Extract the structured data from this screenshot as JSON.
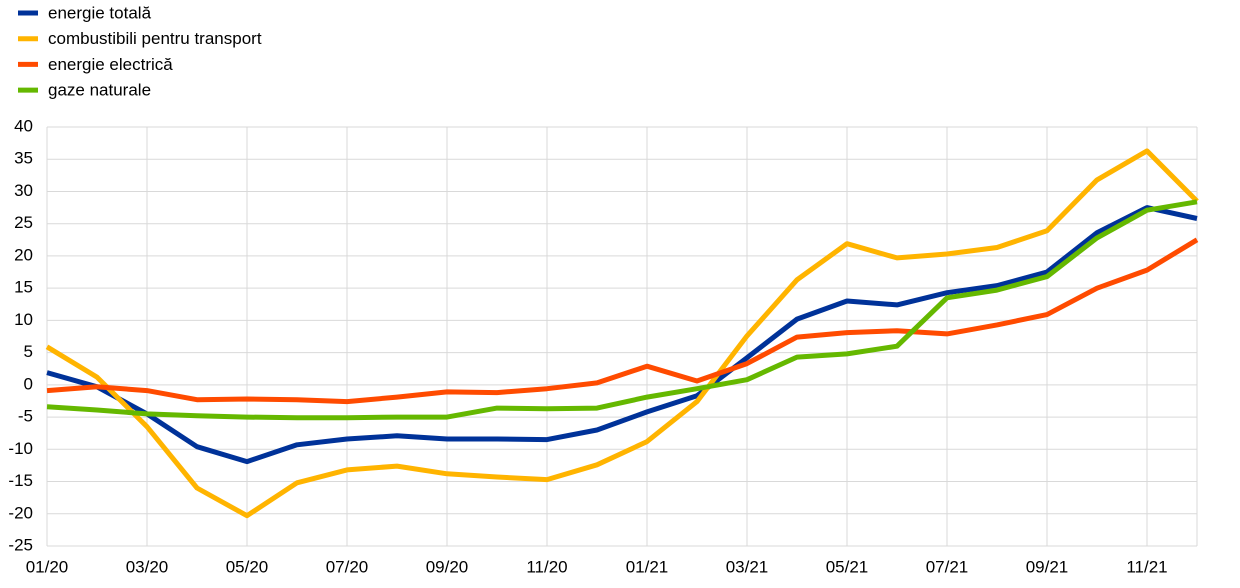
{
  "chart_data": {
    "type": "line",
    "categories": [
      "01/20",
      null,
      "03/20",
      null,
      "05/20",
      null,
      "07/20",
      null,
      "09/20",
      null,
      "11/20",
      null,
      "01/21",
      null,
      "03/21",
      null,
      "05/21",
      null,
      "07/21",
      null,
      "09/21",
      null,
      "11/21",
      null
    ],
    "series": [
      {
        "name": "energie totală",
        "color": "#003299",
        "values": [
          1.9,
          -0.3,
          -4.5,
          -9.6,
          -11.9,
          -9.3,
          -8.4,
          -7.9,
          -8.4,
          -8.4,
          -8.5,
          -7.0,
          -4.2,
          -1.7,
          4.2,
          10.2,
          13.0,
          12.4,
          14.3,
          15.4,
          17.5,
          23.6,
          27.5,
          25.8
        ]
      },
      {
        "name": "combustibili pentru transport",
        "color": "#ffb400",
        "values": [
          5.9,
          1.2,
          -6.5,
          -16.0,
          -20.3,
          -15.2,
          -13.2,
          -12.6,
          -13.8,
          -14.3,
          -14.7,
          -12.4,
          -8.8,
          -2.6,
          7.6,
          16.3,
          21.9,
          19.7,
          20.3,
          21.3,
          23.9,
          31.8,
          36.3,
          28.5
        ]
      },
      {
        "name": "energie electrică",
        "color": "#ff4b00",
        "values": [
          -0.9,
          -0.3,
          -0.9,
          -2.3,
          -2.2,
          -2.3,
          -2.6,
          -1.9,
          -1.1,
          -1.2,
          -0.6,
          0.3,
          2.9,
          0.6,
          3.3,
          7.4,
          8.1,
          8.4,
          7.9,
          9.3,
          10.9,
          15.0,
          17.8,
          22.5
        ]
      },
      {
        "name": "gaze naturale",
        "color": "#65b800",
        "values": [
          -3.4,
          -3.9,
          -4.5,
          -4.8,
          -5.0,
          -5.1,
          -5.1,
          -5.0,
          -5.0,
          -3.6,
          -3.7,
          -3.6,
          -1.9,
          -0.6,
          0.8,
          4.3,
          4.8,
          6.0,
          13.5,
          14.7,
          16.8,
          22.8,
          27.1,
          28.4
        ]
      }
    ],
    "ylim": [
      -25,
      40
    ],
    "yticks": [
      -25,
      -20,
      -15,
      -10,
      -5,
      0,
      5,
      10,
      15,
      20,
      25,
      30,
      35,
      40
    ],
    "grid": true,
    "legend": "top-left"
  }
}
